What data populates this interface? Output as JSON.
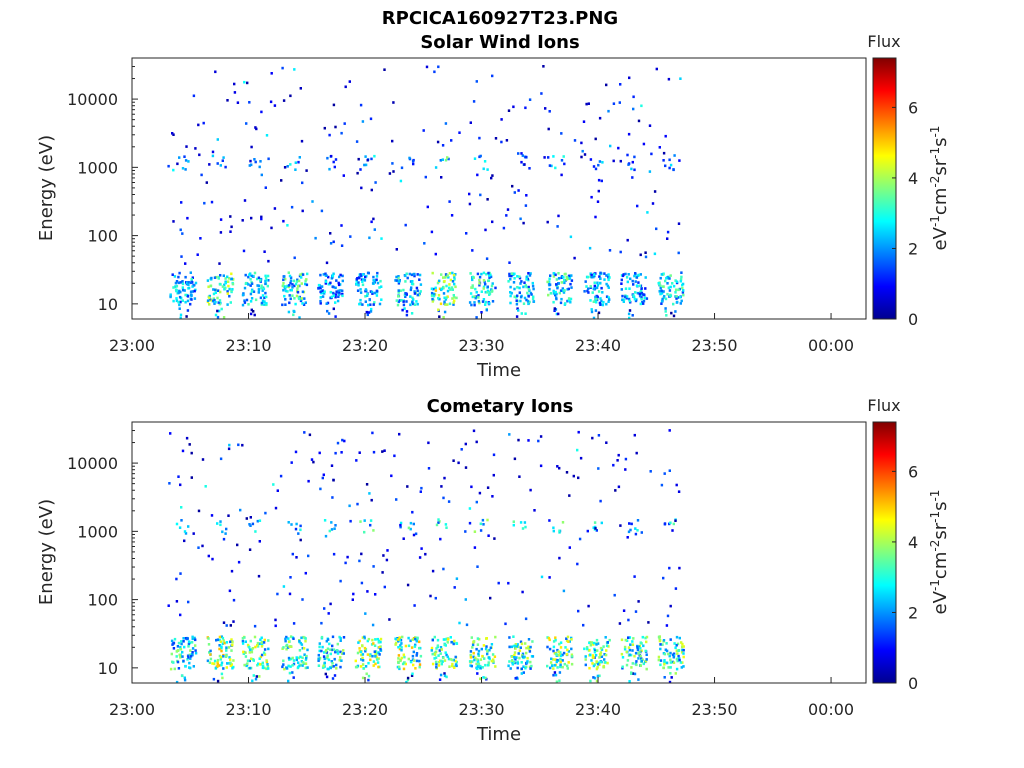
{
  "figure_title": "RPCICA160927T23.PNG",
  "chart_data": [
    {
      "type": "heatmap",
      "title": "Solar Wind Ions",
      "xlabel": "Time",
      "ylabel": "Energy (eV)",
      "x_ticks": [
        "23:00",
        "23:10",
        "23:20",
        "23:30",
        "23:40",
        "23:50",
        "00:00"
      ],
      "y_ticks": [
        "10",
        "100",
        "1000",
        "10000"
      ],
      "y_scale": "log",
      "ylim": [
        6,
        40000
      ],
      "xlim_minutes": [
        0,
        63
      ],
      "data_end_minute": 47,
      "colorbar": {
        "title": "Flux",
        "label": "eV-1cm-2sr-1s-1",
        "range": [
          0,
          7.4
        ],
        "ticks": [
          "0",
          "2",
          "4",
          "6"
        ]
      },
      "bursts": [
        {
          "t": 4.2,
          "v": 2.8
        },
        {
          "t": 7.4,
          "v": 4.0
        },
        {
          "t": 10.4,
          "v": 3.0
        },
        {
          "t": 13.8,
          "v": 3.6
        },
        {
          "t": 16.9,
          "v": 2.6
        },
        {
          "t": 20.1,
          "v": 2.8
        },
        {
          "t": 23.5,
          "v": 3.2
        },
        {
          "t": 26.6,
          "v": 4.4
        },
        {
          "t": 29.9,
          "v": 3.4
        },
        {
          "t": 33.2,
          "v": 3.0
        },
        {
          "t": 36.5,
          "v": 3.4
        },
        {
          "t": 39.7,
          "v": 3.0
        },
        {
          "t": 42.9,
          "v": 2.8
        },
        {
          "t": 46.1,
          "v": 3.2
        }
      ],
      "band_energy_range": [
        10,
        30
      ],
      "high_band_energy": 1200
    },
    {
      "type": "heatmap",
      "title": "Cometary Ions",
      "xlabel": "Time",
      "ylabel": "Energy (eV)",
      "x_ticks": [
        "23:00",
        "23:10",
        "23:20",
        "23:30",
        "23:40",
        "23:50",
        "00:00"
      ],
      "y_ticks": [
        "10",
        "100",
        "1000",
        "10000"
      ],
      "y_scale": "log",
      "ylim": [
        6,
        40000
      ],
      "xlim_minutes": [
        0,
        63
      ],
      "data_end_minute": 47,
      "colorbar": {
        "title": "Flux",
        "label": "eV-1cm-2sr-1s-1",
        "range": [
          0,
          7.4
        ],
        "ticks": [
          "0",
          "2",
          "4",
          "6"
        ]
      },
      "bursts": [
        {
          "t": 4.2,
          "v": 3.6
        },
        {
          "t": 7.4,
          "v": 4.6
        },
        {
          "t": 10.4,
          "v": 4.4
        },
        {
          "t": 13.8,
          "v": 3.8
        },
        {
          "t": 16.9,
          "v": 3.6
        },
        {
          "t": 20.1,
          "v": 4.4
        },
        {
          "t": 23.5,
          "v": 4.6
        },
        {
          "t": 26.6,
          "v": 4.2
        },
        {
          "t": 29.9,
          "v": 4.6
        },
        {
          "t": 33.2,
          "v": 4.0
        },
        {
          "t": 36.5,
          "v": 4.4
        },
        {
          "t": 39.7,
          "v": 4.2
        },
        {
          "t": 42.9,
          "v": 3.8
        },
        {
          "t": 46.1,
          "v": 4.0
        }
      ],
      "band_energy_range": [
        10,
        30
      ],
      "high_band_energy": 1200
    }
  ]
}
